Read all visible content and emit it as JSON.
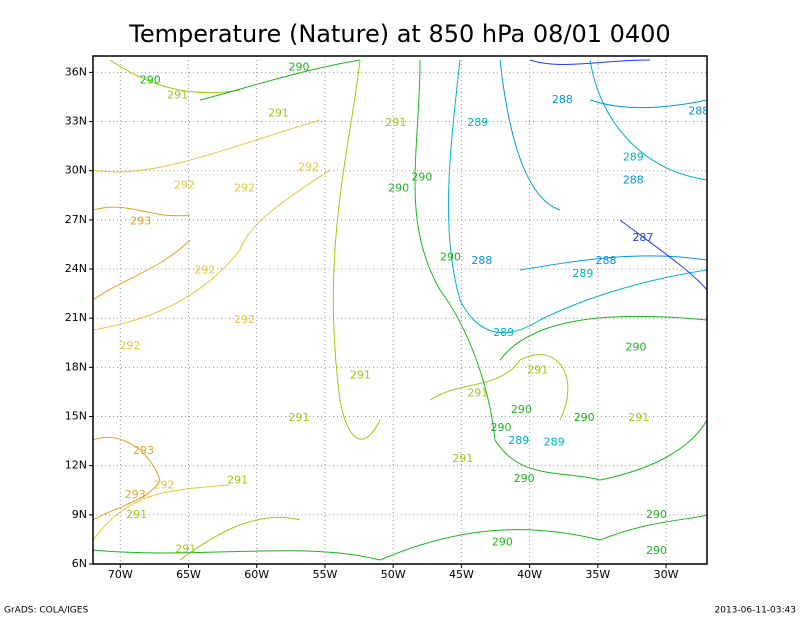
{
  "chart_data": {
    "type": "contour",
    "title": "Temperature (Nature) at 850 hPa 08/01 0400",
    "footer_left": "GrADS: COLA/IGES",
    "footer_right": "2013-06-11-03:43",
    "xlim": [
      -72,
      -27
    ],
    "ylim": [
      6,
      37
    ],
    "grid": true,
    "xticks": [
      {
        "value": -70,
        "label": "70W"
      },
      {
        "value": -65,
        "label": "65W"
      },
      {
        "value": -60,
        "label": "60W"
      },
      {
        "value": -55,
        "label": "55W"
      },
      {
        "value": -50,
        "label": "50W"
      },
      {
        "value": -45,
        "label": "45W"
      },
      {
        "value": -40,
        "label": "40W"
      },
      {
        "value": -35,
        "label": "35W"
      },
      {
        "value": -30,
        "label": "30W"
      }
    ],
    "yticks": [
      {
        "value": 6,
        "label": "6N"
      },
      {
        "value": 9,
        "label": "9N"
      },
      {
        "value": 12,
        "label": "12N"
      },
      {
        "value": 15,
        "label": "15N"
      },
      {
        "value": 18,
        "label": "18N"
      },
      {
        "value": 21,
        "label": "21N"
      },
      {
        "value": 24,
        "label": "24N"
      },
      {
        "value": 27,
        "label": "27N"
      },
      {
        "value": 30,
        "label": "30N"
      },
      {
        "value": 33,
        "label": "33N"
      },
      {
        "value": 36,
        "label": "36N"
      }
    ],
    "series": [
      {
        "name": "287",
        "color": "#1e3cff",
        "x": [
          -31.7
        ],
        "y": [
          25.9
        ]
      },
      {
        "name": "288",
        "color": "#0096e6",
        "x": [
          -37.6,
          -32.4,
          -43.5,
          -34.4,
          -27.6
        ],
        "y": [
          34.3,
          29.4,
          24.5,
          24.5,
          33.6
        ]
      },
      {
        "name": "289",
        "color": "#00b4c8",
        "x": [
          -43.8,
          -32.4,
          -36.1,
          -41.9,
          -40.8,
          -38.2
        ],
        "y": [
          32.9,
          30.8,
          23.7,
          20.1,
          13.5,
          13.4
        ]
      },
      {
        "name": "290",
        "color": "#1eb41e",
        "x": [
          -67.8,
          -56.9,
          -49.6,
          -47.9,
          -45.8,
          -32.2,
          -40.6,
          -36.0,
          -42.1,
          -40.4,
          -30.7,
          -42.0,
          -30.7
        ],
        "y": [
          35.5,
          36.3,
          28.9,
          29.6,
          24.7,
          19.2,
          15.4,
          14.9,
          14.3,
          11.2,
          9.0,
          7.3,
          6.8
        ]
      },
      {
        "name": "291",
        "color": "#a0c814",
        "x": [
          -65.8,
          -58.4,
          -49.8,
          -52.4,
          -56.9,
          -43.8,
          -39.4,
          -32.0,
          -44.9,
          -61.4,
          -68.8,
          -65.2
        ],
        "y": [
          34.6,
          33.5,
          32.9,
          17.5,
          14.9,
          16.4,
          17.8,
          14.9,
          12.4,
          11.1,
          9.0,
          6.9
        ]
      },
      {
        "name": "292",
        "color": "#e6c83c",
        "x": [
          -65.3,
          -60.9,
          -56.2,
          -63.8,
          -60.9,
          -69.3,
          -66.8
        ],
        "y": [
          29.1,
          28.9,
          30.2,
          23.9,
          20.9,
          19.3,
          10.8
        ]
      },
      {
        "name": "293",
        "color": "#e6a028",
        "x": [
          -68.5,
          -68.3,
          -68.9
        ],
        "y": [
          26.9,
          12.9,
          10.2
        ]
      }
    ]
  }
}
